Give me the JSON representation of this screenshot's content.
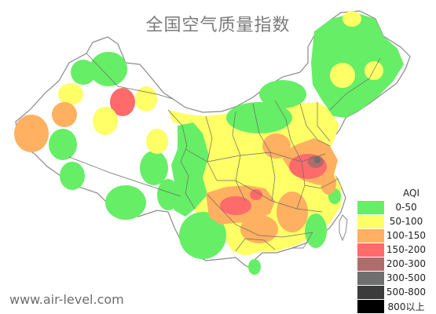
{
  "map": {
    "title": "全国空气质量指数",
    "website": "www.air-level.com",
    "legend": {
      "title": "AQI",
      "items": [
        {
          "label": "0-50",
          "color": "#66ee66"
        },
        {
          "label": "50-100",
          "color": "#ffff66"
        },
        {
          "label": "100-150",
          "color": "#ffb060"
        },
        {
          "label": "150-200",
          "color": "#ff6a6a"
        },
        {
          "label": "200-300",
          "color": "#b06c6c"
        },
        {
          "label": "300-500",
          "color": "#6f6f6f"
        },
        {
          "label": "500-800",
          "color": "#3c3c3c"
        },
        {
          "label": "800以上",
          "color": "#000000"
        }
      ]
    },
    "colors": {
      "good": "#66ee66",
      "moderate": "#ffff66",
      "sensitive": "#ffb060",
      "unhealthy": "#ff6a6a",
      "very_unhealthy": "#b06c6c",
      "hazardous": "#6f6f6f",
      "border": "#8a8a8a",
      "province_line": "#6b6b6b"
    }
  }
}
